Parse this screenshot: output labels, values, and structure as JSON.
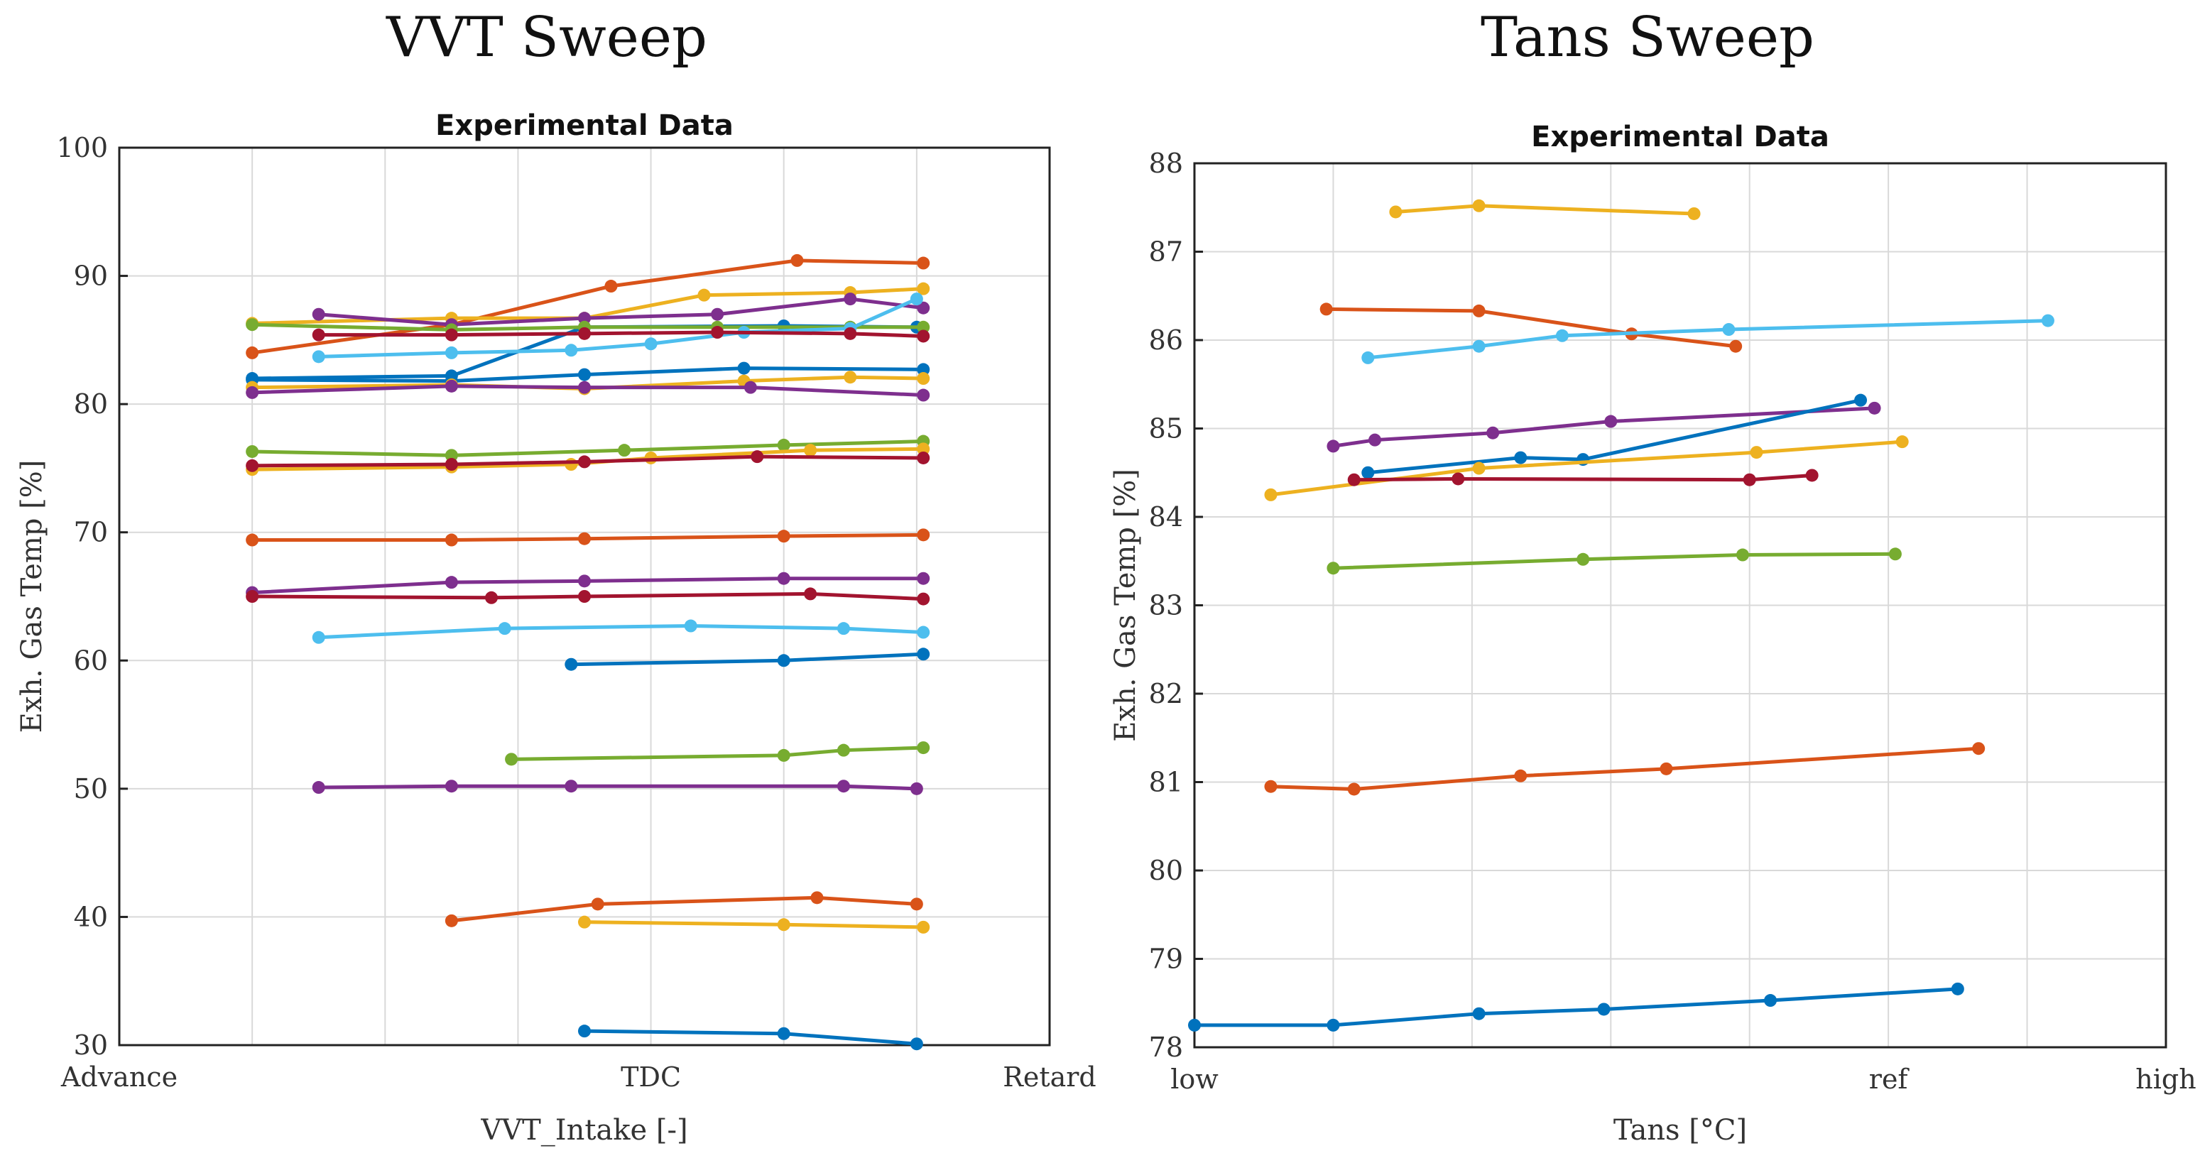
{
  "titles": {
    "left": "VVT Sweep",
    "right": "Tans Sweep"
  },
  "chart_data": [
    {
      "type": "line",
      "title": "Experimental Data",
      "xlabel": "VVT_Intake [-]",
      "ylabel": "Exh. Gas Temp [%]",
      "xlim": [
        0,
        7
      ],
      "ylim": [
        30,
        100
      ],
      "x_ticks": [
        {
          "x": 0,
          "label": "Advance"
        },
        {
          "x": 4,
          "label": "TDC"
        },
        {
          "x": 7,
          "label": "Retard"
        }
      ],
      "y_ticks": [
        30,
        40,
        50,
        60,
        70,
        80,
        90,
        100
      ],
      "grid_x": [
        1,
        2,
        3,
        4,
        5,
        6
      ],
      "series": [
        {
          "color": "#0072BD",
          "points": [
            [
              1,
              82.0
            ],
            [
              2.5,
              82.2
            ],
            [
              3.5,
              86.0
            ],
            [
              5,
              86.1
            ],
            [
              6,
              86.0
            ]
          ]
        },
        {
          "color": "#D95319",
          "points": [
            [
              1,
              84.0
            ],
            [
              2.5,
              86.2
            ],
            [
              3.7,
              89.2
            ],
            [
              5.1,
              91.2
            ],
            [
              6.05,
              91.0
            ]
          ]
        },
        {
          "color": "#EDB120",
          "points": [
            [
              1,
              86.3
            ],
            [
              2.5,
              86.7
            ],
            [
              3.5,
              86.7
            ],
            [
              4.4,
              88.5
            ],
            [
              5.5,
              88.7
            ],
            [
              6.05,
              89.0
            ]
          ]
        },
        {
          "color": "#7E2F8E",
          "points": [
            [
              1.5,
              87.0
            ],
            [
              2.5,
              86.2
            ],
            [
              3.5,
              86.7
            ],
            [
              4.5,
              87.0
            ],
            [
              5.5,
              88.2
            ],
            [
              6.05,
              87.5
            ]
          ]
        },
        {
          "color": "#77AC30",
          "points": [
            [
              1,
              86.2
            ],
            [
              2.5,
              85.8
            ],
            [
              3.5,
              86.0
            ],
            [
              4.5,
              86.0
            ],
            [
              5.5,
              86.0
            ],
            [
              6.05,
              86.0
            ]
          ]
        },
        {
          "color": "#4DBEEE",
          "points": [
            [
              1.5,
              83.7
            ],
            [
              2.5,
              84.0
            ],
            [
              3.4,
              84.2
            ],
            [
              4,
              84.7
            ],
            [
              4.7,
              85.6
            ],
            [
              5.5,
              85.9
            ],
            [
              6,
              88.2
            ]
          ]
        },
        {
          "color": "#A2142F",
          "points": [
            [
              1.5,
              85.4
            ],
            [
              2.5,
              85.4
            ],
            [
              3.5,
              85.5
            ],
            [
              4.5,
              85.6
            ],
            [
              5.5,
              85.5
            ],
            [
              6.05,
              85.3
            ]
          ]
        },
        {
          "color": "#0072BD",
          "points": [
            [
              1,
              81.9
            ],
            [
              2.5,
              81.8
            ],
            [
              3.5,
              82.3
            ],
            [
              4.7,
              82.8
            ],
            [
              6.05,
              82.7
            ]
          ]
        },
        {
          "color": "#EDB120",
          "points": [
            [
              1,
              81.3
            ],
            [
              2.5,
              81.5
            ],
            [
              3.5,
              81.2
            ],
            [
              4.7,
              81.8
            ],
            [
              5.5,
              82.1
            ],
            [
              6.05,
              82.0
            ]
          ]
        },
        {
          "color": "#7E2F8E",
          "points": [
            [
              1,
              80.9
            ],
            [
              2.5,
              81.4
            ],
            [
              3.5,
              81.3
            ],
            [
              4.75,
              81.3
            ],
            [
              6.05,
              80.7
            ]
          ]
        },
        {
          "color": "#77AC30",
          "points": [
            [
              1,
              76.3
            ],
            [
              2.5,
              76.0
            ],
            [
              3.8,
              76.4
            ],
            [
              5,
              76.8
            ],
            [
              6.05,
              77.1
            ]
          ]
        },
        {
          "color": "#EDB120",
          "points": [
            [
              1,
              74.9
            ],
            [
              2.5,
              75.1
            ],
            [
              3.4,
              75.3
            ],
            [
              4,
              75.8
            ],
            [
              5.2,
              76.4
            ],
            [
              6.05,
              76.5
            ]
          ]
        },
        {
          "color": "#A2142F",
          "points": [
            [
              1,
              75.2
            ],
            [
              2.5,
              75.3
            ],
            [
              3.5,
              75.5
            ],
            [
              4.8,
              75.9
            ],
            [
              6.05,
              75.8
            ]
          ]
        },
        {
          "color": "#D95319",
          "points": [
            [
              1,
              69.4
            ],
            [
              2.5,
              69.4
            ],
            [
              3.5,
              69.5
            ],
            [
              5,
              69.7
            ],
            [
              6.05,
              69.8
            ]
          ]
        },
        {
          "color": "#7E2F8E",
          "points": [
            [
              1,
              65.3
            ],
            [
              2.5,
              66.1
            ],
            [
              3.5,
              66.2
            ],
            [
              5,
              66.4
            ],
            [
              6.05,
              66.4
            ]
          ]
        },
        {
          "color": "#A2142F",
          "points": [
            [
              1,
              65.0
            ],
            [
              2.8,
              64.9
            ],
            [
              3.5,
              65.0
            ],
            [
              5.2,
              65.2
            ],
            [
              6.05,
              64.8
            ]
          ]
        },
        {
          "color": "#4DBEEE",
          "points": [
            [
              1.5,
              61.8
            ],
            [
              2.9,
              62.5
            ],
            [
              4.3,
              62.7
            ],
            [
              5.45,
              62.5
            ],
            [
              6.05,
              62.2
            ]
          ]
        },
        {
          "color": "#0072BD",
          "points": [
            [
              3.4,
              59.7
            ],
            [
              5,
              60.0
            ],
            [
              6.05,
              60.5
            ]
          ]
        },
        {
          "color": "#77AC30",
          "points": [
            [
              2.95,
              52.3
            ],
            [
              5,
              52.6
            ],
            [
              5.45,
              53.0
            ],
            [
              6.05,
              53.2
            ]
          ]
        },
        {
          "color": "#7E2F8E",
          "points": [
            [
              1.5,
              50.1
            ],
            [
              2.5,
              50.2
            ],
            [
              3.4,
              50.2
            ],
            [
              5.45,
              50.2
            ],
            [
              6,
              50.0
            ]
          ]
        },
        {
          "color": "#D95319",
          "points": [
            [
              2.5,
              39.7
            ],
            [
              3.6,
              41.0
            ],
            [
              5.25,
              41.5
            ],
            [
              6,
              41.0
            ]
          ]
        },
        {
          "color": "#EDB120",
          "points": [
            [
              3.5,
              39.6
            ],
            [
              5,
              39.4
            ],
            [
              6.05,
              39.2
            ]
          ]
        },
        {
          "color": "#0072BD",
          "points": [
            [
              3.5,
              31.1
            ],
            [
              5,
              30.9
            ],
            [
              6,
              30.1
            ]
          ]
        }
      ]
    },
    {
      "type": "line",
      "title": "Experimental Data",
      "xlabel": "Tans [°C]",
      "ylabel": "Exh. Gas Temp [%]",
      "xlim": [
        0,
        7
      ],
      "ylim": [
        78,
        88
      ],
      "x_ticks": [
        {
          "x": 0,
          "label": "low"
        },
        {
          "x": 5,
          "label": "ref"
        },
        {
          "x": 7,
          "label": "high"
        }
      ],
      "y_ticks": [
        78,
        79,
        80,
        81,
        82,
        83,
        84,
        85,
        86,
        87,
        88
      ],
      "grid_x": [
        1,
        2,
        3,
        4,
        5,
        6
      ],
      "series": [
        {
          "color": "#EDB120",
          "points": [
            [
              1.45,
              87.45
            ],
            [
              2.05,
              87.52
            ],
            [
              3.6,
              87.43
            ]
          ]
        },
        {
          "color": "#D95319",
          "points": [
            [
              0.95,
              86.35
            ],
            [
              2.05,
              86.33
            ],
            [
              3.15,
              86.07
            ],
            [
              3.9,
              85.93
            ]
          ]
        },
        {
          "color": "#4DBEEE",
          "points": [
            [
              1.25,
              85.8
            ],
            [
              2.05,
              85.93
            ],
            [
              2.65,
              86.05
            ],
            [
              3.85,
              86.12
            ],
            [
              6.15,
              86.22
            ]
          ]
        },
        {
          "color": "#7E2F8E",
          "points": [
            [
              1.0,
              84.8
            ],
            [
              1.3,
              84.87
            ],
            [
              2.15,
              84.95
            ],
            [
              3.0,
              85.08
            ],
            [
              4.9,
              85.23
            ]
          ]
        },
        {
          "color": "#0072BD",
          "points": [
            [
              1.25,
              84.5
            ],
            [
              2.35,
              84.67
            ],
            [
              2.8,
              84.65
            ],
            [
              4.8,
              85.32
            ]
          ]
        },
        {
          "color": "#EDB120",
          "points": [
            [
              0.55,
              84.25
            ],
            [
              2.05,
              84.55
            ],
            [
              4.05,
              84.73
            ],
            [
              5.1,
              84.85
            ]
          ]
        },
        {
          "color": "#A2142F",
          "points": [
            [
              1.15,
              84.42
            ],
            [
              1.9,
              84.43
            ],
            [
              4.0,
              84.42
            ],
            [
              4.45,
              84.47
            ]
          ]
        },
        {
          "color": "#77AC30",
          "points": [
            [
              1.0,
              83.42
            ],
            [
              2.8,
              83.52
            ],
            [
              3.95,
              83.57
            ],
            [
              5.05,
              83.58
            ]
          ]
        },
        {
          "color": "#D95319",
          "points": [
            [
              0.55,
              80.95
            ],
            [
              1.15,
              80.92
            ],
            [
              2.35,
              81.07
            ],
            [
              3.4,
              81.15
            ],
            [
              5.65,
              81.38
            ]
          ]
        },
        {
          "color": "#0072BD",
          "points": [
            [
              0,
              78.25
            ],
            [
              1,
              78.25
            ],
            [
              2.05,
              78.38
            ],
            [
              2.95,
              78.43
            ],
            [
              4.15,
              78.53
            ],
            [
              5.5,
              78.66
            ]
          ]
        }
      ]
    }
  ]
}
